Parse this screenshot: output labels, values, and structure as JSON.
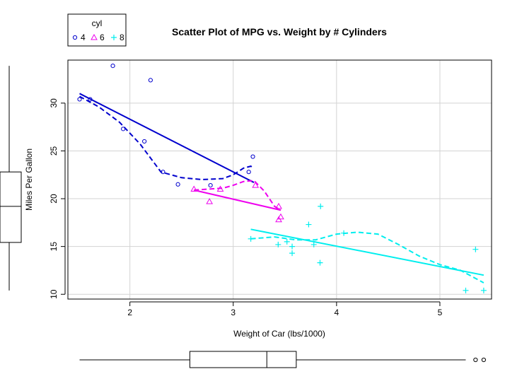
{
  "chart_data": {
    "type": "scatter",
    "title": "Scatter Plot of MPG vs. Weight by # Cylinders",
    "xlabel": "Weight of Car (lbs/1000)",
    "ylabel": "Miles Per Gallon",
    "xlim": [
      1.4,
      5.5
    ],
    "ylim": [
      9.5,
      34.5
    ],
    "x_ticks": [
      2,
      3,
      4,
      5
    ],
    "y_ticks": [
      10,
      15,
      20,
      25,
      30
    ],
    "grid": true,
    "legend": {
      "title": "cyl",
      "placement": "top-left",
      "entries": [
        "4",
        "6",
        "8"
      ]
    },
    "colors": {
      "4": "#0000cd",
      "6": "#ee00ee",
      "8": "#00eeee"
    },
    "series": [
      {
        "name": "4",
        "marker": "circle",
        "points": [
          [
            1.513,
            30.4
          ],
          [
            1.615,
            30.4
          ],
          [
            1.835,
            33.9
          ],
          [
            1.935,
            27.3
          ],
          [
            2.14,
            26.0
          ],
          [
            2.2,
            32.4
          ],
          [
            2.32,
            22.8
          ],
          [
            2.465,
            21.5
          ],
          [
            2.78,
            21.4
          ],
          [
            3.15,
            22.8
          ],
          [
            3.19,
            24.4
          ]
        ],
        "fit": [
          [
            1.513,
            31.0
          ],
          [
            3.2,
            21.7
          ]
        ],
        "smooth": [
          [
            1.513,
            30.7
          ],
          [
            1.7,
            29.6
          ],
          [
            1.9,
            28.0
          ],
          [
            2.1,
            25.7
          ],
          [
            2.3,
            22.8
          ],
          [
            2.5,
            22.2
          ],
          [
            2.7,
            22.0
          ],
          [
            2.9,
            22.1
          ],
          [
            3.0,
            22.5
          ],
          [
            3.1,
            23.2
          ],
          [
            3.17,
            23.4
          ],
          [
            3.2,
            23.2
          ]
        ]
      },
      {
        "name": "6",
        "marker": "triangle",
        "points": [
          [
            2.62,
            21.0
          ],
          [
            2.77,
            19.7
          ],
          [
            2.875,
            21.0
          ],
          [
            3.215,
            21.4
          ],
          [
            3.44,
            19.2
          ],
          [
            3.44,
            17.8
          ],
          [
            3.46,
            18.1
          ]
        ],
        "fit": [
          [
            2.62,
            20.9
          ],
          [
            3.46,
            18.8
          ]
        ],
        "smooth": [
          [
            2.62,
            20.9
          ],
          [
            2.75,
            21.0
          ],
          [
            2.9,
            21.1
          ],
          [
            3.0,
            21.4
          ],
          [
            3.1,
            21.8
          ],
          [
            3.2,
            21.9
          ],
          [
            3.3,
            20.8
          ],
          [
            3.4,
            19.2
          ],
          [
            3.46,
            18.8
          ]
        ]
      },
      {
        "name": "8",
        "marker": "plus",
        "points": [
          [
            3.17,
            15.8
          ],
          [
            3.435,
            15.2
          ],
          [
            3.52,
            15.5
          ],
          [
            3.57,
            14.3
          ],
          [
            3.57,
            15.0
          ],
          [
            3.73,
            17.3
          ],
          [
            3.78,
            15.2
          ],
          [
            3.84,
            13.3
          ],
          [
            3.845,
            19.2
          ],
          [
            4.07,
            16.4
          ],
          [
            5.25,
            10.4
          ],
          [
            5.345,
            14.7
          ],
          [
            5.424,
            10.4
          ]
        ],
        "fit": [
          [
            3.17,
            16.8
          ],
          [
            5.424,
            12.0
          ]
        ],
        "smooth": [
          [
            3.17,
            15.8
          ],
          [
            3.4,
            16.0
          ],
          [
            3.6,
            15.7
          ],
          [
            3.8,
            15.7
          ],
          [
            4.0,
            16.3
          ],
          [
            4.2,
            16.5
          ],
          [
            4.4,
            16.3
          ],
          [
            4.6,
            15.2
          ],
          [
            4.8,
            14.0
          ],
          [
            5.0,
            13.1
          ],
          [
            5.2,
            12.5
          ],
          [
            5.424,
            11.2
          ]
        ]
      }
    ],
    "x_boxplot": {
      "whisker_low": 1.513,
      "q1": 2.58,
      "median": 3.325,
      "q3": 3.61,
      "whisker_high": 5.25,
      "outliers": [
        5.345,
        5.424
      ]
    },
    "y_boxplot": {
      "whisker_low": 10.4,
      "q1": 15.425,
      "median": 19.2,
      "q3": 22.8,
      "whisker_high": 33.9
    }
  }
}
